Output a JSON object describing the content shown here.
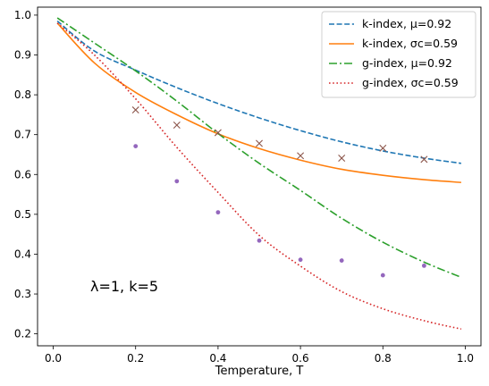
{
  "chart_data": {
    "type": "line",
    "title": "",
    "xlabel": "Temperature, T",
    "ylabel": "",
    "xlim": [
      -0.038,
      1.038
    ],
    "ylim": [
      0.17,
      1.02
    ],
    "xticks": [
      0.0,
      0.2,
      0.4,
      0.6,
      0.8,
      1.0
    ],
    "xtick_labels": [
      "0.0",
      "0.2",
      "0.4",
      "0.6",
      "0.8",
      "1.0"
    ],
    "yticks": [
      0.2,
      0.3,
      0.4,
      0.5,
      0.6,
      0.7,
      0.8,
      0.9,
      1.0
    ],
    "ytick_labels": [
      "0.2",
      "0.3",
      "0.4",
      "0.5",
      "0.6",
      "0.7",
      "0.8",
      "0.9",
      "1.0"
    ],
    "annotation": {
      "text": "λ=1, k=5",
      "x": 0.09,
      "y": 0.32
    },
    "legend_position": "top-right",
    "grid": false,
    "series": [
      {
        "name": "k-index, μ=0.92",
        "style": "dashed",
        "color": "#1f77b4",
        "x": [
          0.01,
          0.1,
          0.2,
          0.3,
          0.4,
          0.5,
          0.6,
          0.7,
          0.8,
          0.9,
          0.99
        ],
        "y": [
          0.985,
          0.91,
          0.862,
          0.818,
          0.778,
          0.742,
          0.71,
          0.682,
          0.659,
          0.641,
          0.628
        ]
      },
      {
        "name": "k-index, σc=0.59",
        "style": "solid",
        "color": "#ff7f0e",
        "x": [
          0.01,
          0.1,
          0.2,
          0.3,
          0.4,
          0.5,
          0.6,
          0.7,
          0.8,
          0.9,
          0.99
        ],
        "y": [
          0.98,
          0.88,
          0.806,
          0.75,
          0.702,
          0.665,
          0.636,
          0.613,
          0.598,
          0.587,
          0.58
        ]
      },
      {
        "name": "g-index, μ=0.92",
        "style": "dashdot",
        "color": "#2ca02c",
        "x": [
          0.01,
          0.1,
          0.2,
          0.3,
          0.4,
          0.5,
          0.6,
          0.7,
          0.8,
          0.9,
          0.99
        ],
        "y": [
          0.993,
          0.93,
          0.86,
          0.784,
          0.703,
          0.628,
          0.56,
          0.49,
          0.43,
          0.38,
          0.342
        ]
      },
      {
        "name": "g-index, σc=0.59",
        "style": "dotted",
        "color": "#d62728",
        "x": [
          0.01,
          0.1,
          0.2,
          0.3,
          0.4,
          0.5,
          0.6,
          0.7,
          0.8,
          0.9,
          0.99
        ],
        "y": [
          0.98,
          0.9,
          0.79,
          0.668,
          0.555,
          0.447,
          0.37,
          0.306,
          0.263,
          0.233,
          0.212
        ]
      }
    ],
    "scatter_series": [
      {
        "name": "",
        "marker": "x",
        "color": "#8c564b",
        "x": [
          0.2,
          0.3,
          0.4,
          0.5,
          0.6,
          0.7,
          0.8,
          0.9
        ],
        "y": [
          0.762,
          0.724,
          0.705,
          0.678,
          0.647,
          0.641,
          0.666,
          0.638
        ]
      },
      {
        "name": "",
        "marker": "dot",
        "color": "#9467bd",
        "x": [
          0.2,
          0.3,
          0.4,
          0.5,
          0.6,
          0.7,
          0.8,
          0.9
        ],
        "y": [
          0.671,
          0.583,
          0.505,
          0.434,
          0.386,
          0.384,
          0.347,
          0.371
        ]
      }
    ]
  }
}
